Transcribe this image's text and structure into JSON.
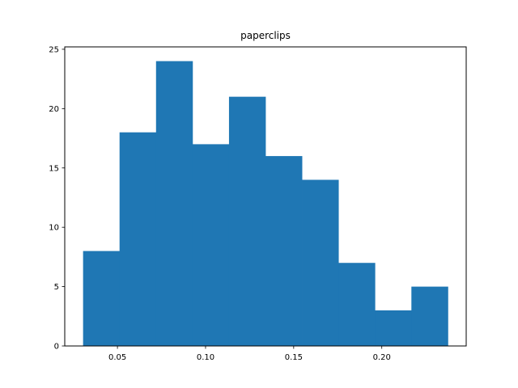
{
  "chart_data": {
    "type": "bar",
    "title": "paperclips",
    "xlabel": "",
    "ylabel": "",
    "bin_edges": [
      0.0305,
      0.0512,
      0.0719,
      0.0926,
      0.1133,
      0.134,
      0.1547,
      0.1754,
      0.1961,
      0.2168,
      0.2375
    ],
    "values": [
      8,
      18,
      24,
      17,
      21,
      16,
      14,
      7,
      3,
      5
    ],
    "xlim": [
      0.0201,
      0.2479
    ],
    "ylim": [
      0,
      25.2
    ],
    "xticks": [
      0.05,
      0.1,
      0.15,
      0.2
    ],
    "xtick_labels": [
      "0.05",
      "0.10",
      "0.15",
      "0.20"
    ],
    "yticks": [
      0,
      5,
      10,
      15,
      20,
      25
    ],
    "ytick_labels": [
      "0",
      "5",
      "10",
      "15",
      "20",
      "25"
    ],
    "grid": false,
    "bar_color": "#1f77b4"
  }
}
